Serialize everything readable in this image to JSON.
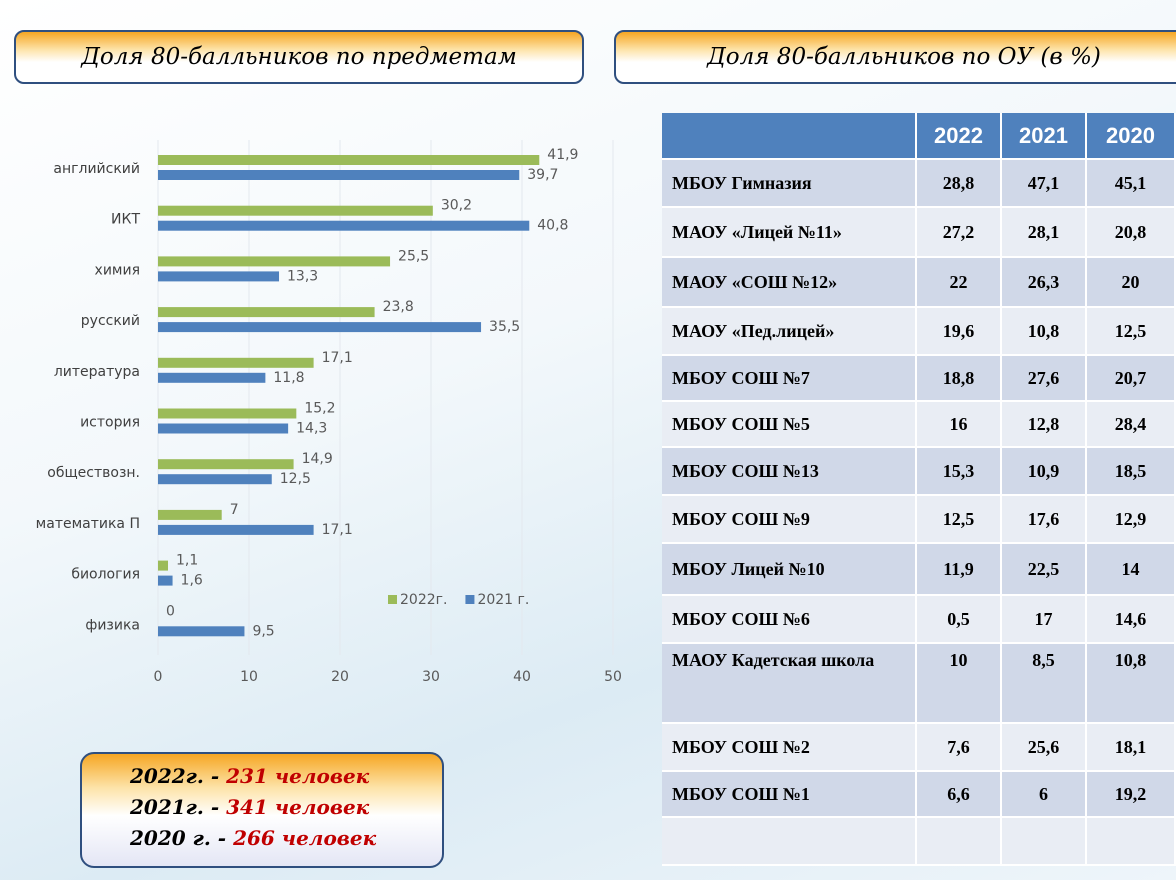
{
  "headers": {
    "left": "Доля 80-балльников по предметам",
    "right": "Доля 80-балльников по ОУ (в %)"
  },
  "chart_data": {
    "type": "bar",
    "orientation": "horizontal",
    "categories": [
      "английский",
      "ИКТ",
      "химия",
      "русский",
      "литература",
      "история",
      "обществозн.",
      "математика П",
      "биология",
      "физика"
    ],
    "series": [
      {
        "name": "2022г.",
        "color": "#9bbb59",
        "values": [
          41.9,
          30.2,
          25.5,
          23.8,
          17.1,
          15.2,
          14.9,
          7,
          1.1,
          0
        ],
        "value_labels": [
          "41,9",
          "30,2",
          "25,5",
          "23,8",
          "17,1",
          "15,2",
          "14,9",
          "7",
          "1,1",
          "0"
        ]
      },
      {
        "name": "2021 г.",
        "color": "#4f81bd",
        "values": [
          39.7,
          40.8,
          13.3,
          35.5,
          11.8,
          14.3,
          12.5,
          17.1,
          1.6,
          9.5
        ],
        "value_labels": [
          "39,7",
          "40,8",
          "13,3",
          "35,5",
          "11,8",
          "14,3",
          "12,5",
          "17,1",
          "1,6",
          "9,5"
        ]
      }
    ],
    "xlim": [
      0,
      50
    ],
    "xticks": [
      0,
      10,
      20,
      30,
      40,
      50
    ],
    "grid": true
  },
  "table": {
    "columns": [
      "2022",
      "2021",
      "2020"
    ],
    "rows": [
      {
        "name": "МБОУ Гимназия",
        "values": [
          "28,8",
          "47,1",
          "45,1"
        ]
      },
      {
        "name": "МАОУ «Лицей №11»",
        "values": [
          "27,2",
          "28,1",
          "20,8"
        ]
      },
      {
        "name": "МАОУ «СОШ №12»",
        "values": [
          "22",
          "26,3",
          "20"
        ]
      },
      {
        "name": "МАОУ «Пед.лицей»",
        "values": [
          "19,6",
          "10,8",
          "12,5"
        ]
      },
      {
        "name": "МБОУ СОШ №7",
        "values": [
          "18,8",
          "27,6",
          "20,7"
        ]
      },
      {
        "name": "МБОУ СОШ №5",
        "values": [
          "16",
          "12,8",
          "28,4"
        ]
      },
      {
        "name": "МБОУ СОШ №13",
        "values": [
          "15,3",
          "10,9",
          "18,5"
        ]
      },
      {
        "name": "МБОУ СОШ №9",
        "values": [
          "12,5",
          "17,6",
          "12,9"
        ]
      },
      {
        "name": "МБОУ Лицей №10",
        "values": [
          "11,9",
          "22,5",
          "14"
        ]
      },
      {
        "name": "МБОУ СОШ №6",
        "values": [
          "0,5",
          "17",
          "14,6"
        ]
      },
      {
        "name": "МАОУ Кадетская школа",
        "values": [
          "10",
          "8,5",
          "10,8"
        ]
      },
      {
        "name": "МБОУ СОШ №2",
        "values": [
          "7,6",
          "25,6",
          "18,1"
        ]
      },
      {
        "name": "МБОУ СОШ №1",
        "values": [
          "6,6",
          "6",
          "19,2"
        ]
      }
    ]
  },
  "summary": [
    {
      "label": "2022г. -",
      "count": "231 человек"
    },
    {
      "label": "2021г. -",
      "count": "341 человек"
    },
    {
      "label": "2020 г. -",
      "count": "266 человек"
    }
  ]
}
